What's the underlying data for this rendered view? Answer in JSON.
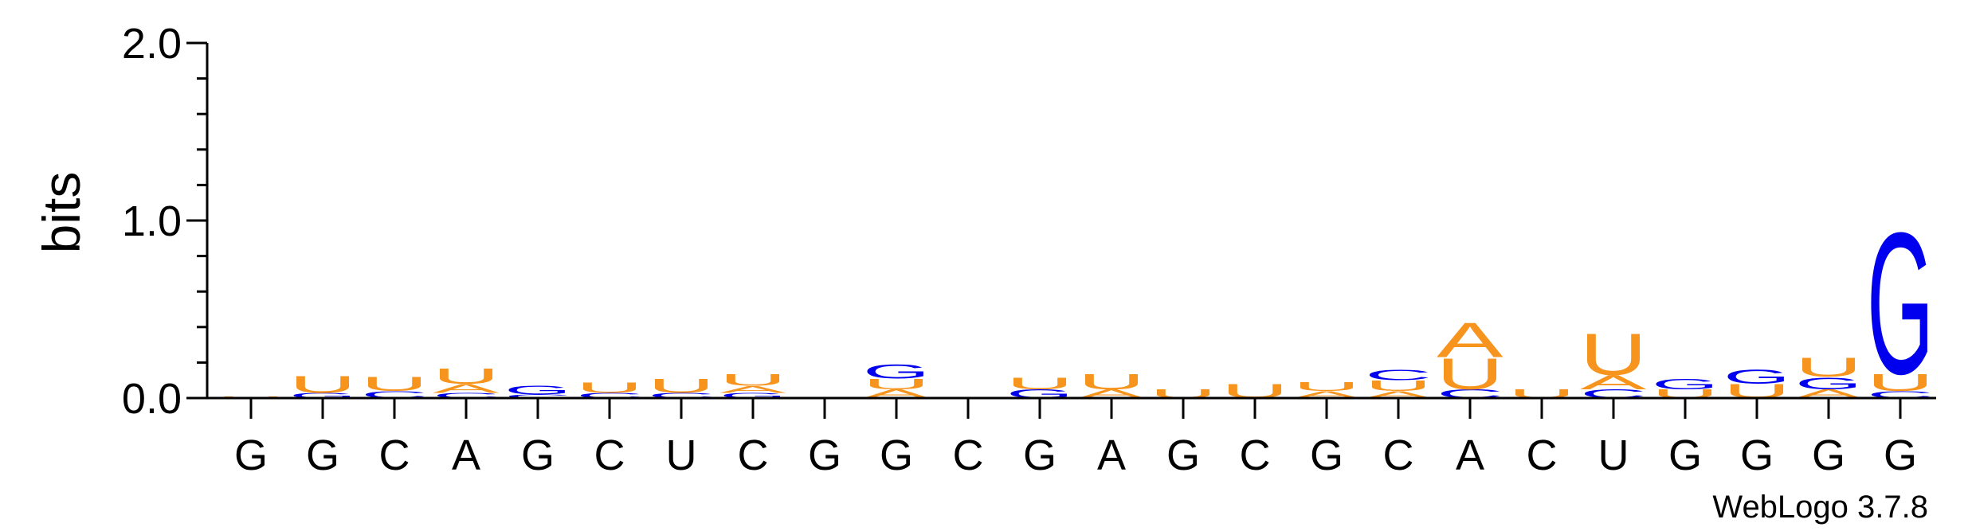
{
  "chart_data": {
    "type": "sequence-logo",
    "ylabel": "bits",
    "ylim": [
      0,
      2.0
    ],
    "yticks": [
      "0.0",
      "1.0",
      "2.0"
    ],
    "credit": "WebLogo 3.7.8",
    "colors": {
      "A": "#f7941d",
      "U": "#f7941d",
      "C": "#0000ee",
      "G": "#0000ee"
    },
    "positions": [
      {
        "label": "G",
        "stack": [
          {
            "letter": "U",
            "bits": 0.01
          }
        ]
      },
      {
        "label": "G",
        "stack": [
          {
            "letter": "G",
            "bits": 0.03
          },
          {
            "letter": "U",
            "bits": 0.1
          }
        ]
      },
      {
        "label": "C",
        "stack": [
          {
            "letter": "C",
            "bits": 0.04
          },
          {
            "letter": "U",
            "bits": 0.08
          }
        ]
      },
      {
        "label": "A",
        "stack": [
          {
            "letter": "C",
            "bits": 0.03
          },
          {
            "letter": "A",
            "bits": 0.05
          },
          {
            "letter": "U",
            "bits": 0.09
          }
        ]
      },
      {
        "label": "G",
        "stack": [
          {
            "letter": "C",
            "bits": 0.02
          },
          {
            "letter": "G",
            "bits": 0.05
          }
        ]
      },
      {
        "label": "C",
        "stack": [
          {
            "letter": "C",
            "bits": 0.03
          },
          {
            "letter": "U",
            "bits": 0.06
          }
        ]
      },
      {
        "label": "U",
        "stack": [
          {
            "letter": "C",
            "bits": 0.03
          },
          {
            "letter": "U",
            "bits": 0.08
          }
        ]
      },
      {
        "label": "C",
        "stack": [
          {
            "letter": "G",
            "bits": 0.03
          },
          {
            "letter": "A",
            "bits": 0.04
          },
          {
            "letter": "U",
            "bits": 0.07
          }
        ]
      },
      {
        "label": "G",
        "stack": []
      },
      {
        "label": "G",
        "stack": [
          {
            "letter": "A",
            "bits": 0.05
          },
          {
            "letter": "U",
            "bits": 0.06
          },
          {
            "letter": "G",
            "bits": 0.08
          }
        ]
      },
      {
        "label": "C",
        "stack": []
      },
      {
        "label": "G",
        "stack": [
          {
            "letter": "G",
            "bits": 0.05
          },
          {
            "letter": "U",
            "bits": 0.07
          }
        ]
      },
      {
        "label": "A",
        "stack": [
          {
            "letter": "A",
            "bits": 0.05
          },
          {
            "letter": "U",
            "bits": 0.09
          }
        ]
      },
      {
        "label": "G",
        "stack": [
          {
            "letter": "U",
            "bits": 0.05
          }
        ]
      },
      {
        "label": "C",
        "stack": [
          {
            "letter": "U",
            "bits": 0.08
          }
        ]
      },
      {
        "label": "G",
        "stack": [
          {
            "letter": "A",
            "bits": 0.04
          },
          {
            "letter": "U",
            "bits": 0.05
          }
        ]
      },
      {
        "label": "C",
        "stack": [
          {
            "letter": "A",
            "bits": 0.04
          },
          {
            "letter": "U",
            "bits": 0.06
          },
          {
            "letter": "C",
            "bits": 0.06
          }
        ]
      },
      {
        "label": "A",
        "stack": [
          {
            "letter": "C",
            "bits": 0.05
          },
          {
            "letter": "U",
            "bits": 0.18
          },
          {
            "letter": "A",
            "bits": 0.2
          }
        ]
      },
      {
        "label": "C",
        "stack": [
          {
            "letter": "U",
            "bits": 0.05
          }
        ]
      },
      {
        "label": "U",
        "stack": [
          {
            "letter": "C",
            "bits": 0.05
          },
          {
            "letter": "A",
            "bits": 0.08
          },
          {
            "letter": "U",
            "bits": 0.24
          }
        ]
      },
      {
        "label": "G",
        "stack": [
          {
            "letter": "U",
            "bits": 0.05
          },
          {
            "letter": "G",
            "bits": 0.06
          }
        ]
      },
      {
        "label": "G",
        "stack": [
          {
            "letter": "U",
            "bits": 0.08
          },
          {
            "letter": "G",
            "bits": 0.08
          }
        ]
      },
      {
        "label": "G",
        "stack": [
          {
            "letter": "A",
            "bits": 0.05
          },
          {
            "letter": "G",
            "bits": 0.07
          },
          {
            "letter": "U",
            "bits": 0.11
          }
        ]
      },
      {
        "label": "G",
        "stack": [
          {
            "letter": "C",
            "bits": 0.04
          },
          {
            "letter": "U",
            "bits": 0.1
          },
          {
            "letter": "G",
            "bits": 0.82
          }
        ]
      }
    ]
  }
}
